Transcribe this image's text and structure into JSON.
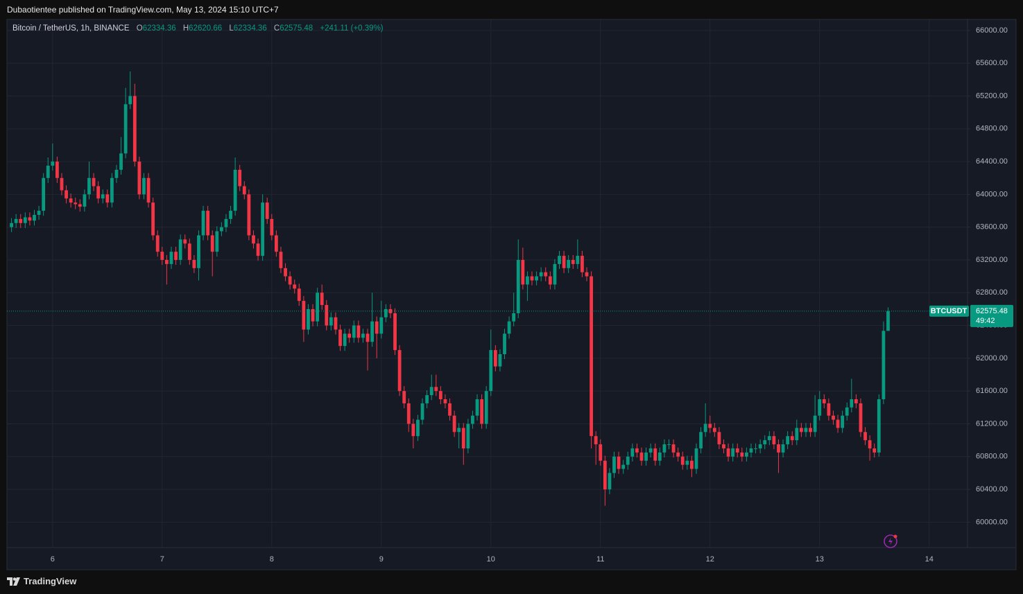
{
  "header": {
    "publisher": "Dubaotientee published on TradingView.com, May 13, 2024 15:10 UTC+7"
  },
  "chart_data": {
    "type": "candlestick",
    "title": "Bitcoin / TetherUS, 1h, BINANCE",
    "legend_labels": [
      "O",
      "H",
      "L",
      "C"
    ],
    "change": "+241.11 (+0.39%)",
    "symbol": "BTCUSDT",
    "countdown": "49:42",
    "up_color": "#089981",
    "down_color": "#f23645",
    "grid": true,
    "xlim": [
      134,
      344.4
    ],
    "xticks": [
      {
        "value": 144,
        "label": "6"
      },
      {
        "value": 168,
        "label": "7"
      },
      {
        "value": 192,
        "label": "8"
      },
      {
        "value": 216,
        "label": "9"
      },
      {
        "value": 240,
        "label": "10"
      },
      {
        "value": 264,
        "label": "11"
      },
      {
        "value": 288,
        "label": "12"
      },
      {
        "value": 312,
        "label": "13"
      },
      {
        "value": 336,
        "label": "14"
      }
    ],
    "ylim": [
      59690,
      66135
    ],
    "yticks": [
      {
        "value": 60000,
        "label": "60000.00"
      },
      {
        "value": 60400,
        "label": "60400.00"
      },
      {
        "value": 60800,
        "label": "60800.00"
      },
      {
        "value": 61200,
        "label": "61200.00"
      },
      {
        "value": 61600,
        "label": "61600.00"
      },
      {
        "value": 62000,
        "label": "62000.00"
      },
      {
        "value": 62400,
        "label": "62400.00"
      },
      {
        "value": 62800,
        "label": "62800.00"
      },
      {
        "value": 63200,
        "label": "63200.00"
      },
      {
        "value": 63600,
        "label": "63600.00"
      },
      {
        "value": 64000,
        "label": "64000.00"
      },
      {
        "value": 64400,
        "label": "64400.00"
      },
      {
        "value": 64800,
        "label": "64800.00"
      },
      {
        "value": 65200,
        "label": "65200.00"
      },
      {
        "value": 65600,
        "label": "65600.00"
      },
      {
        "value": 66000,
        "label": "66000.00"
      }
    ],
    "x": [
      135,
      136,
      137,
      138,
      139,
      140,
      141,
      142,
      143,
      144,
      145,
      146,
      147,
      148,
      149,
      150,
      151,
      152,
      153,
      154,
      155,
      156,
      157,
      158,
      159,
      160,
      161,
      162,
      163,
      164,
      165,
      166,
      167,
      168,
      169,
      170,
      171,
      172,
      173,
      174,
      175,
      176,
      177,
      178,
      179,
      180,
      181,
      182,
      183,
      184,
      185,
      186,
      187,
      188,
      189,
      190,
      191,
      192,
      193,
      194,
      195,
      196,
      197,
      198,
      199,
      200,
      201,
      202,
      203,
      204,
      205,
      206,
      207,
      208,
      209,
      210,
      211,
      212,
      213,
      214,
      215,
      216,
      217,
      218,
      219,
      220,
      221,
      222,
      223,
      224,
      225,
      226,
      227,
      228,
      229,
      230,
      231,
      232,
      233,
      234,
      235,
      236,
      237,
      238,
      239,
      240,
      241,
      242,
      243,
      244,
      245,
      246,
      247,
      248,
      249,
      250,
      251,
      252,
      253,
      254,
      255,
      256,
      257,
      258,
      259,
      260,
      261,
      262,
      263,
      264,
      265,
      266,
      267,
      268,
      269,
      270,
      271,
      272,
      273,
      274,
      275,
      276,
      277,
      278,
      279,
      280,
      281,
      282,
      283,
      284,
      285,
      286,
      287,
      288,
      289,
      290,
      291,
      292,
      293,
      294,
      295,
      296,
      297,
      298,
      299,
      300,
      301,
      302,
      303,
      304,
      305,
      306,
      307,
      308,
      309,
      310,
      311,
      312,
      313,
      314,
      315,
      316,
      317,
      318,
      319,
      320,
      321,
      322,
      323,
      324,
      325,
      326,
      327
    ],
    "open": [
      63600,
      63650,
      63700,
      63650,
      63720,
      63680,
      63750,
      63800,
      64200,
      64350,
      64400,
      64200,
      64050,
      63950,
      63900,
      63880,
      63850,
      64000,
      64200,
      64100,
      63950,
      64000,
      63900,
      64200,
      64300,
      64500,
      65100,
      65200,
      64400,
      64000,
      64200,
      63900,
      63500,
      63300,
      63200,
      63150,
      63300,
      63200,
      63450,
      63400,
      63200,
      63100,
      63500,
      63800,
      63500,
      63300,
      63550,
      63600,
      63700,
      63800,
      64300,
      64100,
      64000,
      63500,
      63400,
      63250,
      63900,
      63700,
      63500,
      63300,
      63100,
      63000,
      62900,
      62850,
      62700,
      62350,
      62600,
      62450,
      62800,
      62650,
      62400,
      62500,
      62350,
      62150,
      62300,
      62250,
      62400,
      62250,
      62300,
      62200,
      62450,
      62300,
      62500,
      62600,
      62550,
      62100,
      61600,
      61450,
      61200,
      61050,
      61250,
      61450,
      61550,
      61650,
      61600,
      61500,
      61450,
      61300,
      61100,
      61150,
      60900,
      61200,
      61300,
      61500,
      61200,
      61600,
      62100,
      61900,
      62050,
      62300,
      62450,
      62550,
      63200,
      62900,
      63000,
      62950,
      63000,
      63050,
      63000,
      62900,
      63150,
      63250,
      63100,
      63200,
      63150,
      63250,
      63050,
      63000,
      61050,
      60950,
      60750,
      60400,
      60600,
      60800,
      60650,
      60700,
      60800,
      60900,
      60850,
      60750,
      60850,
      60900,
      60750,
      60850,
      60950,
      60950,
      60850,
      60800,
      60700,
      60750,
      60650,
      60900,
      61100,
      61200,
      61150,
      61100,
      60950,
      60900,
      60800,
      60900,
      60850,
      60800,
      60850,
      60900,
      60900,
      60950,
      61000,
      61050,
      60950,
      60850,
      60950,
      61050,
      61000,
      61150,
      61100,
      61150,
      61100,
      61300,
      61500,
      61450,
      61300,
      61250,
      61150,
      61300,
      61400,
      61500,
      61450,
      61100,
      61000,
      60900,
      60850,
      61500,
      62334.36
    ],
    "high": [
      63710,
      63760,
      63760,
      63780,
      63780,
      63810,
      63860,
      64260,
      64450,
      64620,
      64460,
      64260,
      64110,
      64010,
      63960,
      63940,
      64060,
      64400,
      64260,
      64160,
      64060,
      64060,
      64260,
      64360,
      64700,
      65300,
      65500,
      65350,
      64460,
      64260,
      64260,
      63960,
      63560,
      63360,
      63260,
      63360,
      63360,
      63510,
      63510,
      63460,
      63260,
      63560,
      63860,
      63860,
      63560,
      63610,
      63660,
      63760,
      63860,
      64450,
      64360,
      64160,
      64060,
      63560,
      63460,
      64000,
      63960,
      63760,
      63560,
      63360,
      63160,
      63060,
      62960,
      62910,
      62760,
      62660,
      62660,
      62860,
      62900,
      62710,
      62560,
      62560,
      62410,
      62360,
      62360,
      62460,
      62460,
      62360,
      62360,
      62800,
      62510,
      62700,
      62660,
      62660,
      62610,
      62160,
      61660,
      61510,
      61260,
      61310,
      61510,
      61610,
      61800,
      61800,
      61660,
      61560,
      61510,
      61360,
      61210,
      61210,
      61260,
      61360,
      61560,
      61560,
      61660,
      62350,
      62160,
      62110,
      62360,
      62510,
      62800,
      63450,
      63350,
      63060,
      63060,
      63060,
      63110,
      63110,
      63060,
      63210,
      63310,
      63310,
      63260,
      63260,
      63450,
      63310,
      63110,
      63060,
      61110,
      61010,
      60810,
      60660,
      60860,
      60860,
      60760,
      60860,
      60960,
      60960,
      60910,
      60910,
      60960,
      60960,
      60910,
      61010,
      61010,
      61010,
      60910,
      60860,
      60810,
      60810,
      60960,
      61160,
      61450,
      61300,
      61210,
      61160,
      61010,
      60960,
      60960,
      60960,
      60910,
      60910,
      60960,
      60960,
      61010,
      61060,
      61110,
      61110,
      61010,
      61010,
      61110,
      61110,
      61250,
      61210,
      61210,
      61210,
      61550,
      61600,
      61560,
      61510,
      61360,
      61310,
      61360,
      61460,
      61750,
      61560,
      61510,
      61160,
      61060,
      60960,
      61560,
      62450,
      62620.66
    ],
    "low": [
      63540,
      63590,
      63590,
      63590,
      63620,
      63620,
      63690,
      63740,
      64140,
      64290,
      64140,
      63990,
      63890,
      63840,
      63820,
      63790,
      63790,
      63940,
      64040,
      63890,
      63890,
      63840,
      63840,
      64140,
      64240,
      64440,
      65040,
      64340,
      63940,
      63940,
      63840,
      63440,
      63240,
      63140,
      62900,
      63090,
      63140,
      63140,
      63340,
      63140,
      63040,
      62950,
      63440,
      63440,
      63000,
      63240,
      63490,
      63540,
      63640,
      63740,
      64040,
      63940,
      63440,
      63340,
      63190,
      63190,
      63640,
      63440,
      63240,
      63040,
      62940,
      62840,
      62790,
      62640,
      62200,
      62290,
      62390,
      62390,
      62590,
      62340,
      62340,
      62290,
      62090,
      62090,
      62190,
      62190,
      62190,
      62190,
      61850,
      62140,
      62000,
      62240,
      62440,
      62490,
      62040,
      61540,
      61390,
      61100,
      60900,
      60990,
      61190,
      61390,
      61490,
      61540,
      61440,
      61390,
      61240,
      61040,
      60900,
      60700,
      60840,
      61140,
      61240,
      61140,
      61140,
      61540,
      61840,
      61840,
      61990,
      62240,
      62390,
      62490,
      62840,
      62700,
      62890,
      62890,
      62940,
      62940,
      62840,
      62840,
      63090,
      63040,
      63040,
      63090,
      63090,
      62990,
      62940,
      60900,
      60700,
      60690,
      60200,
      60340,
      60540,
      60590,
      60590,
      60640,
      60740,
      60790,
      60690,
      60690,
      60790,
      60690,
      60690,
      60790,
      60890,
      60790,
      60740,
      60640,
      60640,
      60550,
      60590,
      60840,
      61040,
      61090,
      61040,
      60890,
      60840,
      60740,
      60740,
      60790,
      60740,
      60740,
      60790,
      60840,
      60840,
      60890,
      60940,
      60890,
      60600,
      60790,
      60890,
      60940,
      60940,
      61040,
      61040,
      61040,
      61040,
      61240,
      61390,
      61240,
      61190,
      61090,
      61090,
      61240,
      61340,
      61390,
      61040,
      60940,
      60750,
      60790,
      60800,
      61440,
      62334.36
    ],
    "close": [
      63650,
      63700,
      63650,
      63720,
      63680,
      63750,
      63800,
      64200,
      64350,
      64400,
      64200,
      64050,
      63950,
      63900,
      63880,
      63850,
      64000,
      64200,
      64100,
      63950,
      64000,
      63900,
      64200,
      64300,
      64500,
      65100,
      65200,
      64400,
      64000,
      64200,
      63900,
      63500,
      63300,
      63200,
      63150,
      63300,
      63200,
      63450,
      63400,
      63200,
      63100,
      63500,
      63800,
      63500,
      63300,
      63550,
      63600,
      63700,
      63800,
      64300,
      64100,
      64000,
      63500,
      63400,
      63250,
      63900,
      63700,
      63500,
      63300,
      63100,
      63000,
      62900,
      62850,
      62700,
      62350,
      62600,
      62450,
      62800,
      62650,
      62400,
      62500,
      62350,
      62150,
      62300,
      62250,
      62400,
      62250,
      62300,
      62200,
      62450,
      62300,
      62500,
      62600,
      62550,
      62100,
      61600,
      61450,
      61200,
      61050,
      61250,
      61450,
      61550,
      61650,
      61600,
      61500,
      61450,
      61300,
      61100,
      61150,
      60900,
      61200,
      61300,
      61500,
      61200,
      61600,
      62100,
      61900,
      62050,
      62300,
      62450,
      62550,
      63200,
      62900,
      63000,
      62950,
      63000,
      63050,
      63000,
      62900,
      63150,
      63250,
      63100,
      63200,
      63150,
      63250,
      63050,
      63000,
      61050,
      60950,
      60750,
      60400,
      60600,
      60800,
      60650,
      60700,
      60800,
      60900,
      60850,
      60750,
      60850,
      60900,
      60750,
      60850,
      60950,
      60950,
      60850,
      60800,
      60700,
      60750,
      60650,
      60900,
      61100,
      61200,
      61150,
      61100,
      60950,
      60900,
      60800,
      60900,
      60850,
      60800,
      60850,
      60900,
      60900,
      60950,
      61000,
      61050,
      60950,
      60850,
      60950,
      61050,
      61000,
      61150,
      61100,
      61150,
      61100,
      61300,
      61500,
      61450,
      61300,
      61250,
      61150,
      61300,
      61400,
      61500,
      61450,
      61100,
      61000,
      60900,
      60850,
      61500,
      62334.36,
      62575.48
    ]
  },
  "footer": {
    "brand": "TradingView"
  }
}
